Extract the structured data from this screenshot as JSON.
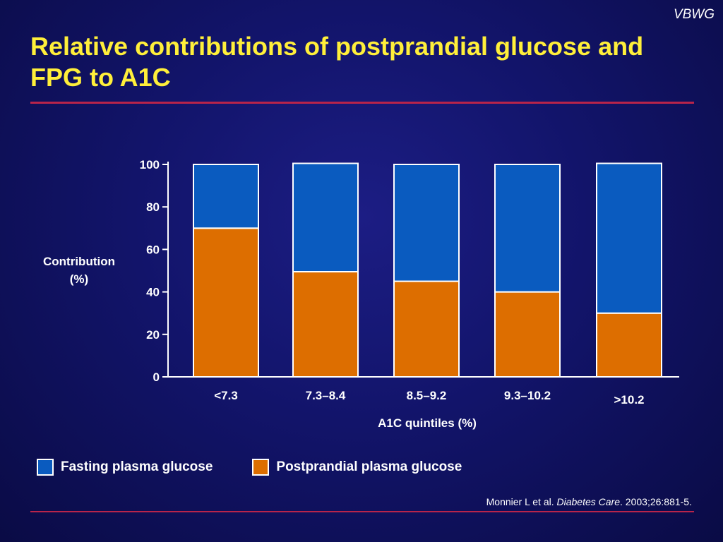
{
  "brand": "VBWG",
  "title": "Relative contributions of postprandial glucose and FPG to A1C",
  "colors": {
    "fasting": "#0a5bbf",
    "postprandial": "#dd6e00",
    "title": "#ffef3a",
    "rule": "#b8244a"
  },
  "chart_data": {
    "type": "bar",
    "stacked": true,
    "categories": [
      "<7.3",
      "7.3–8.4",
      "8.5–9.2",
      "9.3–10.2",
      ">10.2"
    ],
    "series": [
      {
        "name": "Postprandial plasma glucose",
        "values": [
          70,
          49.5,
          45,
          40,
          30
        ]
      },
      {
        "name": "Fasting plasma glucose",
        "values": [
          30,
          51,
          55,
          60,
          70.5
        ]
      }
    ],
    "xlabel": "A1C quintiles (%)",
    "ylabel": [
      "Contribution",
      "(%)"
    ],
    "ylim": [
      0,
      100
    ],
    "yticks": [
      0,
      20,
      40,
      60,
      80,
      100
    ],
    "grid": false,
    "legend_position": "bottom-left"
  },
  "legend": {
    "items": [
      {
        "label": "Fasting plasma glucose",
        "color": "#0a5bbf"
      },
      {
        "label": "Postprandial plasma glucose",
        "color": "#dd6e00"
      }
    ]
  },
  "citation": {
    "authors": "Monnier L et al.",
    "journal": "Diabetes Care",
    "details": ". 2003;26:881-5."
  }
}
